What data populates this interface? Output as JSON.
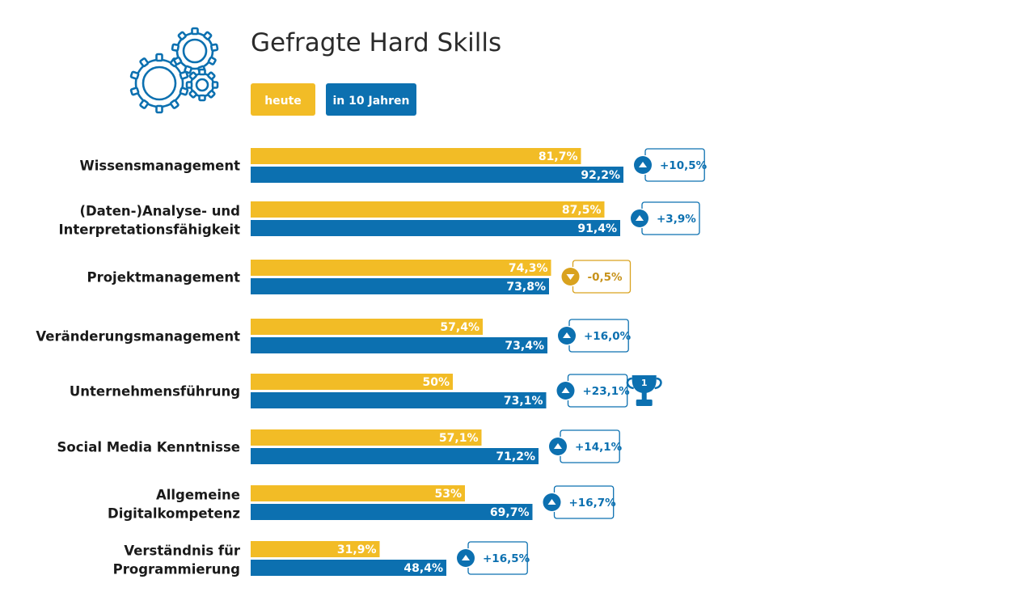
{
  "chart_data": {
    "type": "bar",
    "orientation": "horizontal",
    "title": "Gefragte Hard Skills",
    "icon": "gears-icon",
    "award_icon": "trophy-icon",
    "award_label": "1",
    "colors": {
      "heute": "#F2BC26",
      "in_10_jahren": "#0C70B0",
      "positive": "#0C70B0",
      "negative": "#D9A21E"
    },
    "legend_placement": "top-left",
    "categories": [
      [
        "Wissensmanagement"
      ],
      [
        "(Daten-)Analyse- und",
        "Interpretationsfähigkeit"
      ],
      [
        "Projektmanagement"
      ],
      [
        "Veränderungsmanagement"
      ],
      [
        "Unternehmensführung"
      ],
      [
        "Social Media Kenntnisse"
      ],
      [
        "Allgemeine",
        "Digitalkompetenz"
      ],
      [
        "Verständnis für",
        "Programmierung"
      ]
    ],
    "series": [
      {
        "name": "heute",
        "values": [
          81.7,
          87.5,
          74.3,
          57.4,
          50,
          57.1,
          53,
          31.9
        ],
        "labels": [
          "81,7%",
          "87,5%",
          "74,3%",
          "57,4%",
          "50%",
          "57,1%",
          "53%",
          "31,9%"
        ]
      },
      {
        "name": "in 10 Jahren",
        "values": [
          92.2,
          91.4,
          73.8,
          73.4,
          73.1,
          71.2,
          69.7,
          48.4
        ],
        "labels": [
          "92,2%",
          "91,4%",
          "73,8%",
          "73,4%",
          "73,1%",
          "71,2%",
          "69,7%",
          "48,4%"
        ]
      }
    ],
    "change": {
      "values": [
        10.5,
        3.9,
        -0.5,
        16.0,
        23.1,
        14.1,
        16.7,
        16.5
      ],
      "labels": [
        "+10,5%",
        "+3,9%",
        "-0,5%",
        "+16,0%",
        "+23,1%",
        "+14,1%",
        "+16,7%",
        "+16,5%"
      ]
    },
    "top_change_index": 4,
    "xlim": [
      0,
      100
    ],
    "grid": false
  }
}
